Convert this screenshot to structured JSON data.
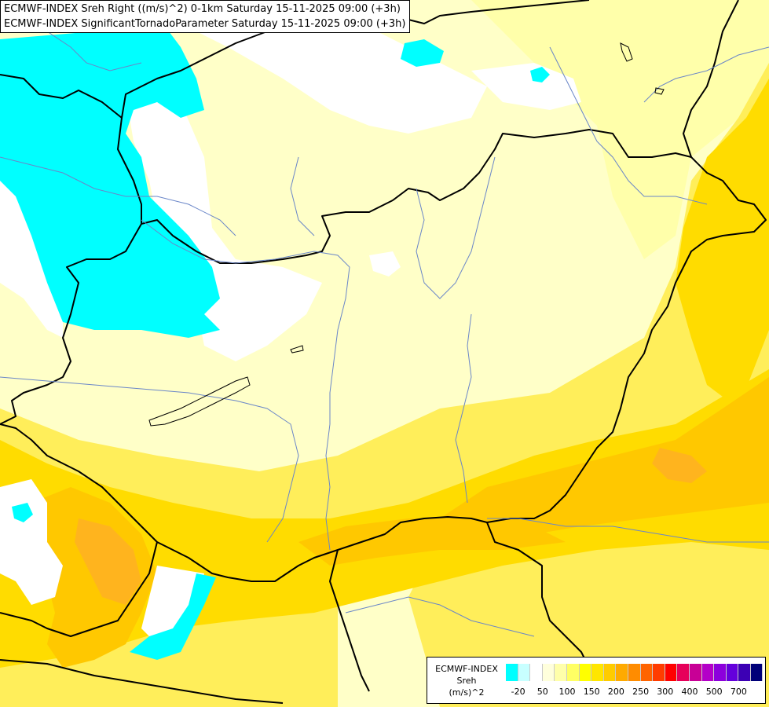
{
  "header": {
    "line1": "ECMWF-INDEX Sreh Right ((m/s)^2) 0-1km Saturday 15-11-2025 09:00 (+3h)",
    "line2": "ECMWF-INDEX SignificantTornadoParameter Saturday 15-11-2025 09:00 (+3h)"
  },
  "legend": {
    "line1": "ECMWF-INDEX",
    "line2": "Sreh",
    "line3": "(m/s)^2",
    "colors": [
      "#00ffff",
      "#c8ffff",
      "#ffffff",
      "#ffffdc",
      "#ffffaa",
      "#ffff64",
      "#ffff00",
      "#ffe600",
      "#ffcc00",
      "#ffaa00",
      "#ff8c00",
      "#ff6400",
      "#ff3c00",
      "#ff0000",
      "#e6005a",
      "#c80096",
      "#b400c8",
      "#8c00dc",
      "#6400dc",
      "#3c00b4",
      "#000078"
    ],
    "ticks": [
      "-20",
      "50",
      "100",
      "150",
      "200",
      "250",
      "300",
      "400",
      "500",
      "700"
    ]
  },
  "map": {
    "colors": {
      "cyan": "#00ffff",
      "white": "#ffffff",
      "pale_yellow": "#ffffc8",
      "light_yellow": "#ffffaa",
      "yellow": "#ffee5a",
      "gold": "#ffdc00",
      "orange": "#ffc800",
      "dark_orange": "#ffb41e",
      "border": "#000000",
      "river": "#6a86c8"
    }
  }
}
